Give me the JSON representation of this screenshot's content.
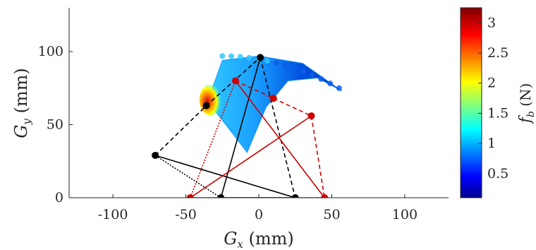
{
  "chart_data": {
    "type": "scatter",
    "xlabel": "G_x (mm)",
    "ylabel": "G_y (mm)",
    "xlim": [
      -130,
      130
    ],
    "ylim": [
      0,
      130
    ],
    "xticks": [
      -100,
      -50,
      0,
      50,
      100
    ],
    "yticks": [
      0,
      50,
      100
    ],
    "colorbar": {
      "label": "f_b (N)",
      "range": [
        0.1,
        3.25
      ],
      "ticks": [
        0.5,
        1,
        1.5,
        2,
        2.5,
        3
      ],
      "colormap": "jet"
    },
    "workspace_region": {
      "description_points": [
        {
          "x": -8,
          "y": 31
        },
        {
          "x": -35,
          "y": 66
        },
        {
          "x": -30,
          "y": 80
        },
        {
          "x": -25,
          "y": 94
        },
        {
          "x": 0,
          "y": 97
        },
        {
          "x": 30,
          "y": 92
        },
        {
          "x": 57,
          "y": 73
        },
        {
          "x": 40,
          "y": 82
        },
        {
          "x": 20,
          "y": 80
        },
        {
          "x": 5,
          "y": 62
        }
      ],
      "high_force_zone": {
        "x": -33,
        "y": 67
      }
    },
    "mechanisms": [
      {
        "name": "black",
        "color": "#000000",
        "base_left": {
          "x": -26,
          "y": 0
        },
        "base_right": {
          "x": 25,
          "y": 0
        },
        "elbow_left": {
          "x": -71,
          "y": 29
        },
        "elbow_right": {
          "x": -36,
          "y": 63
        },
        "apex": {
          "x": 1,
          "y": 96
        }
      },
      {
        "name": "red",
        "color": "#cc0000",
        "base_left": {
          "x": -47,
          "y": 0
        },
        "base_right": {
          "x": 45,
          "y": 0
        },
        "elbow_left": {
          "x": -16,
          "y": 80
        },
        "elbow_right": {
          "x": 10,
          "y": 68
        },
        "apex": {
          "x": 36,
          "y": 56
        }
      }
    ]
  }
}
